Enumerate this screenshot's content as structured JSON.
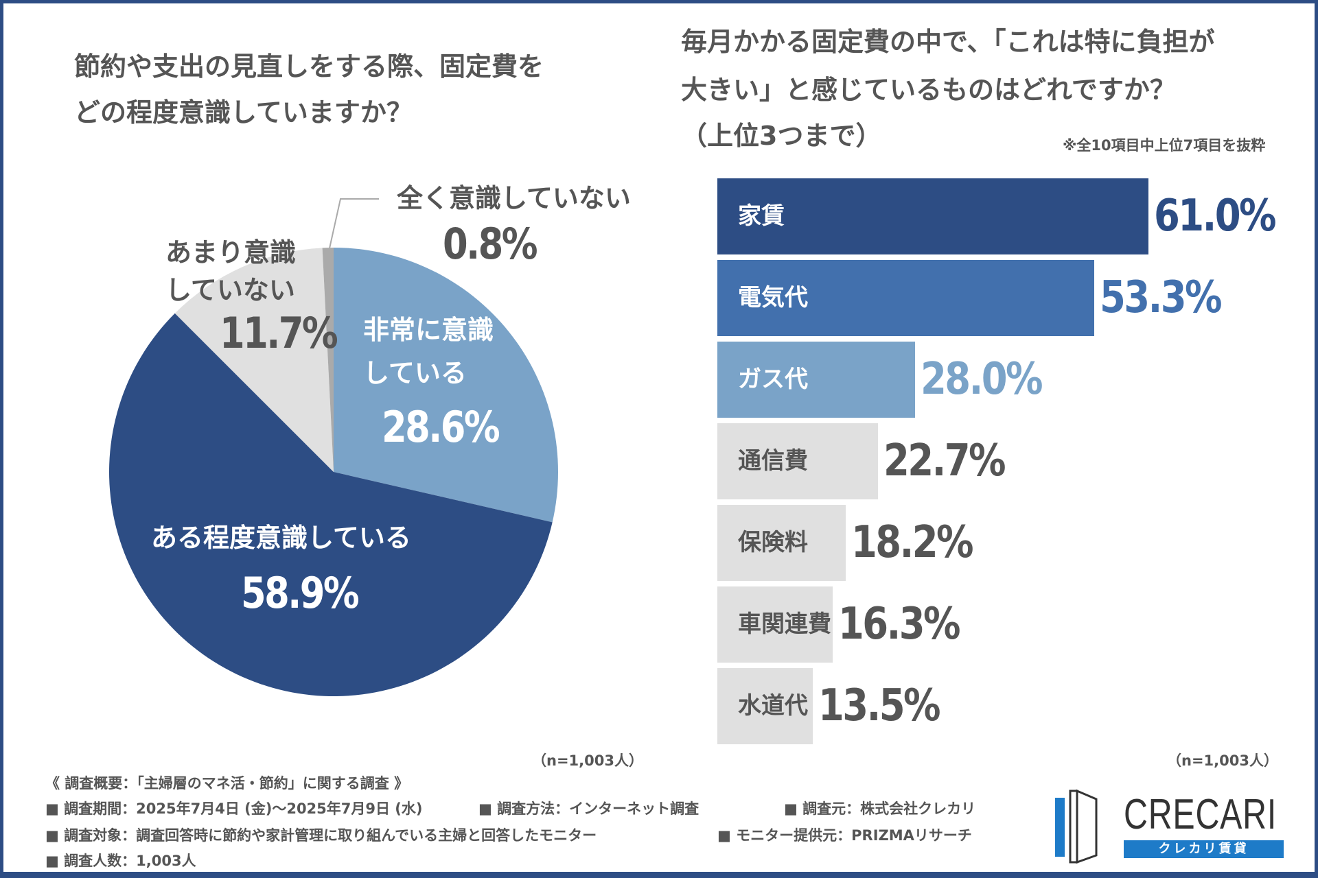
{
  "colors": {
    "frame": "#2d4d84",
    "dark_blue": "#2d4d84",
    "mid_blue": "#4270ad",
    "light_blue": "#7aa3c8",
    "light_grey": "#e0e0e0",
    "grey": "#aaaaaa",
    "text_grey": "#555555"
  },
  "chart_data": [
    {
      "type": "pie",
      "title": "節約や支出の見直しをする際、固定費をどの程度意識していますか？",
      "title_lines": [
        "節約や支出の見直しをする際、固定費を",
        "どの程度意識していますか？"
      ],
      "note": "（n=1,003人）",
      "slices": [
        {
          "label": "非常に意識している",
          "label_lines": [
            "非常に意識",
            "している"
          ],
          "value": 28.6,
          "value_label": "28.6%",
          "color": "#7aa3c8"
        },
        {
          "label": "ある程度意識している",
          "label_lines": [
            "ある程度意識している"
          ],
          "value": 58.9,
          "value_label": "58.9%",
          "color": "#2d4d84"
        },
        {
          "label": "あまり意識していない",
          "label_lines": [
            "あまり意識",
            "していない"
          ],
          "value": 11.7,
          "value_label": "11.7%",
          "color": "#e0e0e0"
        },
        {
          "label": "全く意識していない",
          "label_lines": [
            "全く意識していない"
          ],
          "value": 0.8,
          "value_label": "0.8%",
          "color": "#aaaaaa"
        }
      ]
    },
    {
      "type": "bar",
      "orientation": "horizontal",
      "title": "毎月かかる固定費の中で、「これは特に負担が大きい」と感じているものはどれですか？（上位3つまで）",
      "title_lines": [
        "毎月かかる固定費の中で、「これは特に負担が",
        "大きい」と感じているものはどれですか？",
        "（上位3つまで）"
      ],
      "subtitle": "※全10項目中上位7項目を抜粋",
      "note": "（n=1,003人）",
      "categories": [
        "家賃",
        "電気代",
        "ガス代",
        "通信費",
        "保険料",
        "車関連費",
        "水道代"
      ],
      "values": [
        61.0,
        53.3,
        28.0,
        22.7,
        18.2,
        16.3,
        13.5
      ],
      "value_labels": [
        "61.0%",
        "53.3%",
        "28.0%",
        "22.7%",
        "18.2%",
        "16.3%",
        "13.5%"
      ],
      "bar_colors": [
        "#2d4d84",
        "#4270ad",
        "#7aa3c8",
        "#e0e0e0",
        "#e0e0e0",
        "#e0e0e0",
        "#e0e0e0"
      ],
      "label_colors": [
        "#ffffff",
        "#ffffff",
        "#ffffff",
        "#555555",
        "#555555",
        "#555555",
        "#555555"
      ],
      "value_colors": [
        "#2d4d84",
        "#4270ad",
        "#7aa3c8",
        "#555555",
        "#555555",
        "#555555",
        "#555555"
      ]
    }
  ],
  "footer": {
    "heading": "《 調査概要：「主婦層のマネ活・節約」に関する調査 》",
    "items": [
      "■ 調査期間：2025年7月4日 (金)～2025年7月9日 (水)",
      "■ 調査方法：インターネット調査",
      "■ 調査元：株式会社クレカリ",
      "■ 調査対象：調査回答時に節約や家計管理に取り組んでいる主婦と回答したモニター",
      "■ モニター提供元：PRIZMAリサーチ",
      "■ 調査人数：1,003人"
    ]
  },
  "logo": {
    "name": "CRECARI",
    "sub": "クレカリ賃貸"
  }
}
